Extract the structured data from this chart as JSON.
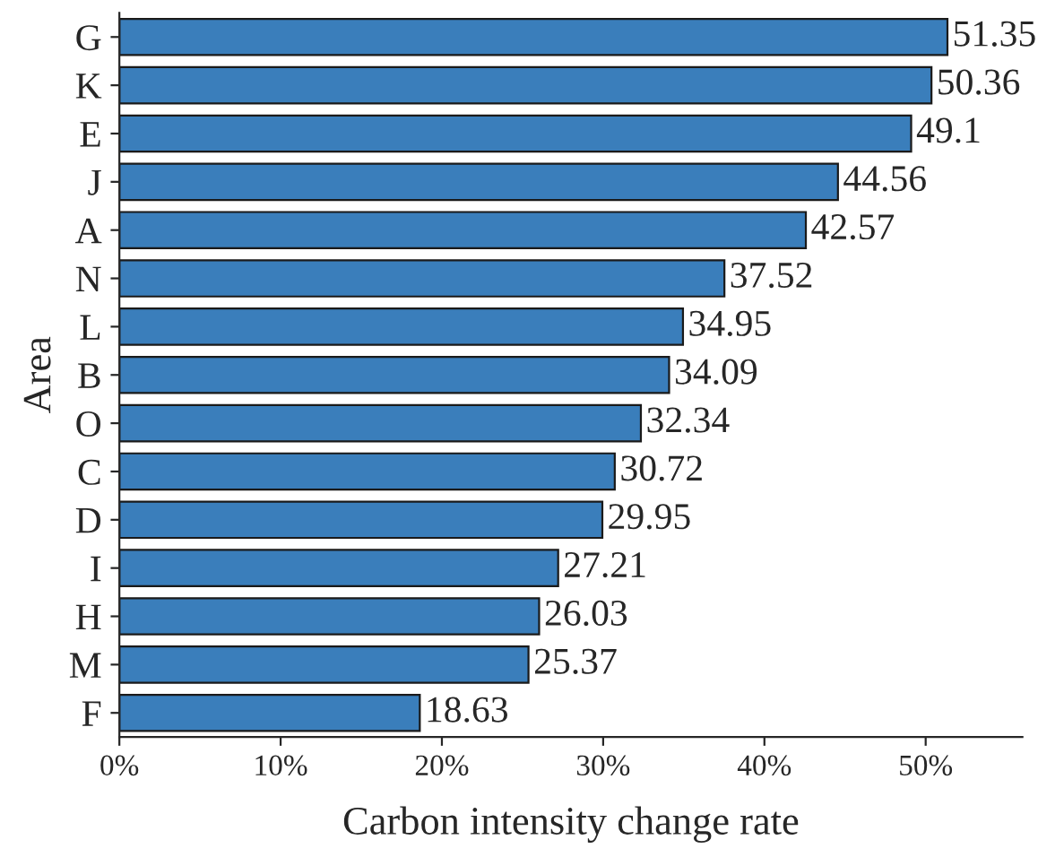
{
  "chart_data": {
    "type": "bar",
    "orientation": "horizontal",
    "xlabel": "Carbon intensity change rate",
    "ylabel": "Area",
    "categories": [
      "G",
      "K",
      "E",
      "J",
      "A",
      "N",
      "L",
      "B",
      "O",
      "C",
      "D",
      "I",
      "H",
      "M",
      "F"
    ],
    "values": [
      51.35,
      50.36,
      49.1,
      44.56,
      42.57,
      37.52,
      34.95,
      34.09,
      32.34,
      30.72,
      29.95,
      27.21,
      26.03,
      25.37,
      18.63
    ],
    "color": "#3a7ebb",
    "xlim": [
      0,
      56
    ],
    "xticks": [
      {
        "value": 0,
        "label": "0%"
      },
      {
        "value": 10,
        "label": "10%"
      },
      {
        "value": 20,
        "label": "20%"
      },
      {
        "value": 30,
        "label": "30%"
      },
      {
        "value": 40,
        "label": "40%"
      },
      {
        "value": 50,
        "label": "50%"
      }
    ],
    "data_labels": true
  }
}
